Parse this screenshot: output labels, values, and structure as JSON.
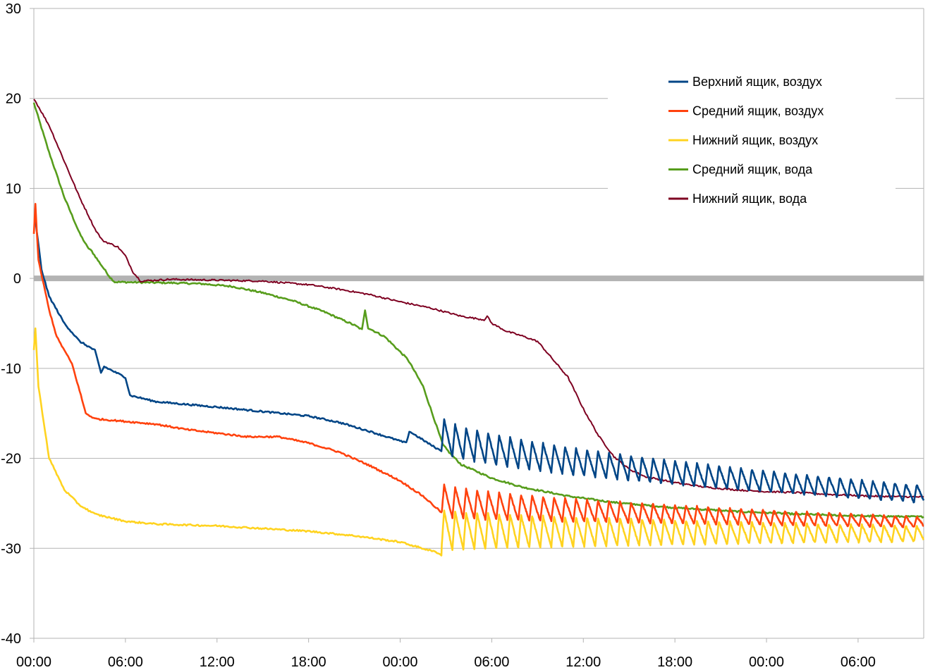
{
  "chart_data": {
    "type": "line",
    "title": "",
    "xlabel": "",
    "ylabel": "",
    "ylim": [
      -40,
      30
    ],
    "xlim": [
      0,
      58.3
    ],
    "x_unit": "hours from start",
    "yticks": [
      30,
      20,
      10,
      0,
      -10,
      -20,
      -30,
      -40
    ],
    "ytick_labels": [
      "30",
      "20",
      "10",
      "0",
      "-10",
      "-20",
      "-30",
      "-40"
    ],
    "xticks": [
      0,
      6,
      12,
      18,
      24,
      30,
      36,
      42,
      48,
      54
    ],
    "xtick_labels": [
      "00:00",
      "06:00",
      "12:00",
      "18:00",
      "00:00",
      "06:00",
      "12:00",
      "18:00",
      "00:00",
      "06:00"
    ],
    "grid": true,
    "zero_line": true,
    "legend": {
      "position": "top-right"
    },
    "series": [
      {
        "name": "Верхний ящик, воздух",
        "color": "#004586",
        "points": [
          [
            0.1,
            6.5
          ],
          [
            0.5,
            1
          ],
          [
            1,
            -2
          ],
          [
            2,
            -5
          ],
          [
            3,
            -7
          ],
          [
            4,
            -8
          ],
          [
            4.4,
            -10.5
          ],
          [
            4.6,
            -9.8
          ],
          [
            6,
            -11
          ],
          [
            6.3,
            -13
          ],
          [
            8,
            -13.7
          ],
          [
            12,
            -14.3
          ],
          [
            15,
            -14.8
          ],
          [
            18,
            -15.3
          ],
          [
            20,
            -16
          ],
          [
            22,
            -17
          ],
          [
            24.4,
            -18.3
          ],
          [
            24.6,
            -17
          ],
          [
            26,
            -18.5
          ],
          [
            26.7,
            -19.2
          ]
        ],
        "oscillation": {
          "start": 26.7,
          "end": 58.3,
          "low_start": -19.2,
          "high_start": -15.3,
          "low_end": -25,
          "high_end": -23,
          "period": 0.72
        }
      },
      {
        "name": "Средний ящик, воздух",
        "color": "#ff420e",
        "points": [
          [
            0,
            5
          ],
          [
            0.1,
            8.2
          ],
          [
            0.3,
            2
          ],
          [
            1,
            -3.5
          ],
          [
            1.5,
            -6.5
          ],
          [
            2.5,
            -9.5
          ],
          [
            3,
            -12.5
          ],
          [
            3.4,
            -15
          ],
          [
            4,
            -15.6
          ],
          [
            6,
            -15.9
          ],
          [
            8,
            -16.2
          ],
          [
            10,
            -16.8
          ],
          [
            12,
            -17.2
          ],
          [
            14,
            -17.6
          ],
          [
            16,
            -17.6
          ],
          [
            18,
            -18.3
          ],
          [
            20,
            -19.3
          ],
          [
            22,
            -20.8
          ],
          [
            24,
            -22.5
          ],
          [
            25.5,
            -24.2
          ],
          [
            26.7,
            -26
          ]
        ],
        "oscillation": {
          "start": 26.7,
          "end": 58.3,
          "low_start": -26.5,
          "high_start": -22.8,
          "low_end": -27.7,
          "high_end": -26.5,
          "period": 0.72
        }
      },
      {
        "name": "Нижний ящик, воздух",
        "color": "#ffd320",
        "points": [
          [
            0,
            -8
          ],
          [
            0.1,
            -5.5
          ],
          [
            0.3,
            -12
          ],
          [
            1,
            -20
          ],
          [
            2,
            -23.5
          ],
          [
            3,
            -25.2
          ],
          [
            4,
            -26.2
          ],
          [
            6,
            -27
          ],
          [
            8,
            -27.3
          ],
          [
            12,
            -27.5
          ],
          [
            15,
            -27.8
          ],
          [
            18,
            -28.1
          ],
          [
            21,
            -28.6
          ],
          [
            24,
            -29.3
          ],
          [
            26.5,
            -30.5
          ],
          [
            26.7,
            -30.8
          ]
        ],
        "oscillation": {
          "start": 26.7,
          "end": 58.3,
          "low_start": -30.3,
          "high_start": -25.7,
          "low_end": -29.3,
          "high_end": -27.5,
          "period": 0.72
        }
      },
      {
        "name": "Средний ящик, вода",
        "color": "#579d1c",
        "points": [
          [
            0,
            19.5
          ],
          [
            1,
            14
          ],
          [
            2,
            9
          ],
          [
            3,
            5
          ],
          [
            3.5,
            3.5
          ],
          [
            3.8,
            3
          ],
          [
            4.2,
            2
          ],
          [
            5,
            0.1
          ],
          [
            5.3,
            -0.4
          ],
          [
            9,
            -0.5
          ],
          [
            11,
            -0.6
          ],
          [
            13,
            -0.9
          ],
          [
            15,
            -1.6
          ],
          [
            17,
            -2.5
          ],
          [
            19,
            -3.7
          ],
          [
            21,
            -5.2
          ],
          [
            21.5,
            -5.7
          ],
          [
            21.7,
            -3.5
          ],
          [
            21.9,
            -5.5
          ],
          [
            23,
            -6.5
          ],
          [
            24.5,
            -9
          ],
          [
            25.5,
            -12
          ],
          [
            26.3,
            -16
          ],
          [
            26.8,
            -18.5
          ],
          [
            27.3,
            -19.5
          ],
          [
            28,
            -20.7
          ],
          [
            30,
            -22.2
          ],
          [
            32,
            -23.2
          ],
          [
            35,
            -24.2
          ],
          [
            38,
            -24.9
          ],
          [
            42,
            -25.5
          ],
          [
            46,
            -25.9
          ],
          [
            50,
            -26.2
          ],
          [
            54,
            -26.4
          ],
          [
            58.3,
            -26.5
          ]
        ]
      },
      {
        "name": "Нижний ящик, вода",
        "color": "#7e0021",
        "points": [
          [
            0,
            20
          ],
          [
            1,
            17
          ],
          [
            2,
            13
          ],
          [
            3,
            9
          ],
          [
            4,
            5.5
          ],
          [
            4.5,
            4.2
          ],
          [
            5.5,
            3.5
          ],
          [
            6,
            2.5
          ],
          [
            6.5,
            0.7
          ],
          [
            7,
            -0.3
          ],
          [
            8,
            -0.2
          ],
          [
            9,
            -0.1
          ],
          [
            12,
            -0.2
          ],
          [
            15,
            -0.3
          ],
          [
            18,
            -0.7
          ],
          [
            20,
            -1.2
          ],
          [
            22,
            -1.8
          ],
          [
            24,
            -2.6
          ],
          [
            26,
            -3.3
          ],
          [
            28,
            -4.2
          ],
          [
            29.5,
            -4.6
          ],
          [
            29.7,
            -4.2
          ],
          [
            30,
            -5
          ],
          [
            31,
            -5.9
          ],
          [
            32,
            -6.4
          ],
          [
            33,
            -7
          ],
          [
            34,
            -9
          ],
          [
            35,
            -11
          ],
          [
            36,
            -14.5
          ],
          [
            37,
            -17.5
          ],
          [
            38,
            -19.8
          ],
          [
            39,
            -21.2
          ],
          [
            40,
            -22
          ],
          [
            42,
            -22.7
          ],
          [
            44,
            -23.2
          ],
          [
            46,
            -23.5
          ],
          [
            48,
            -23.7
          ],
          [
            50,
            -23.8
          ],
          [
            52,
            -24
          ],
          [
            55,
            -24.2
          ],
          [
            58.3,
            -24.3
          ]
        ]
      }
    ]
  }
}
